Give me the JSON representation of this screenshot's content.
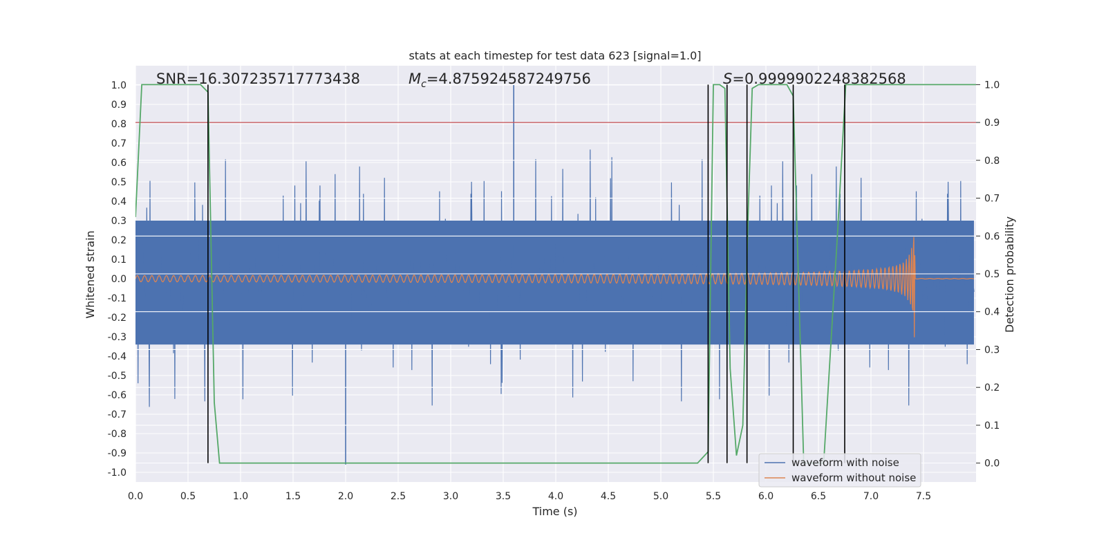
{
  "chart_data": {
    "type": "line",
    "title": "stats at each timestep for test data 623 [signal=1.0]",
    "xlabel": "Time (s)",
    "ylabel": "Whitened strain",
    "ylabel_right": "Detection probability",
    "xlim": [
      0.0,
      8.0
    ],
    "ylim": [
      -1.05,
      1.1
    ],
    "ylim_right": [
      -0.05,
      1.05
    ],
    "x_ticks": [
      "0.0",
      "0.5",
      "1.0",
      "1.5",
      "2.0",
      "2.5",
      "3.0",
      "3.5",
      "4.0",
      "4.5",
      "5.0",
      "5.5",
      "6.0",
      "6.5",
      "7.0",
      "7.5"
    ],
    "y_ticks": [
      "1.0",
      "0.9",
      "0.8",
      "0.7",
      "0.6",
      "0.5",
      "0.4",
      "0.3",
      "0.2",
      "0.1",
      "0.0",
      "-0.1",
      "-0.2",
      "-0.3",
      "-0.4",
      "-0.5",
      "-0.6",
      "-0.7",
      "-0.8",
      "-0.9",
      "-1.0"
    ],
    "y_ticks_right": [
      "1.0",
      "0.9",
      "0.8",
      "0.7",
      "0.6",
      "0.5",
      "0.4",
      "0.3",
      "0.2",
      "0.1",
      "0.0"
    ],
    "annotations": {
      "snr": "SNR=16.307235717773438",
      "mc_symbol": "M",
      "mc_sub": "c",
      "mc_value": "=4.875924587249756",
      "s_symbol": "S",
      "s_value": "=0.9999902248382568"
    },
    "legend": [
      "waveform with noise",
      "waveform without noise"
    ],
    "legend_location": "lower right",
    "colors": {
      "noise": "#4c72b0",
      "clean": "#dd8452",
      "probability": "#55a868",
      "threshold": "#c44e52",
      "vlines": "#000000",
      "axes_bg": "#eaeaf2",
      "grid": "#ffffff"
    },
    "threshold_probability": 0.9,
    "detection_vlines_s": [
      0.69,
      5.45,
      5.63,
      5.82,
      6.26,
      6.75
    ],
    "noise_spikes": [
      [
        3.6,
        1.0
      ],
      [
        2.0,
        -0.96
      ]
    ],
    "series": [
      {
        "name": "Detection probability",
        "axis": "right",
        "x": [
          0.0,
          0.06,
          0.1,
          0.2,
          0.3,
          0.4,
          0.5,
          0.6,
          0.62,
          0.69,
          0.75,
          0.8,
          1.0,
          2.0,
          3.0,
          4.0,
          5.0,
          5.35,
          5.45,
          5.5,
          5.56,
          5.61,
          5.66,
          5.72,
          5.78,
          5.83,
          5.87,
          5.93,
          6.0,
          6.1,
          6.2,
          6.26,
          6.36,
          6.55,
          6.68,
          6.76,
          6.82,
          7.0,
          7.5,
          8.0
        ],
        "y": [
          0.65,
          1.0,
          1.0,
          1.0,
          1.0,
          1.0,
          1.0,
          1.0,
          1.0,
          0.98,
          0.16,
          0.0,
          0.0,
          0.0,
          0.0,
          0.0,
          0.0,
          0.0,
          0.03,
          1.0,
          1.0,
          0.99,
          0.25,
          0.02,
          0.1,
          0.65,
          0.99,
          1.0,
          1.0,
          1.0,
          1.0,
          0.97,
          0.0,
          0.0,
          0.6,
          1.0,
          1.0,
          1.0,
          1.0,
          1.0
        ]
      }
    ]
  }
}
